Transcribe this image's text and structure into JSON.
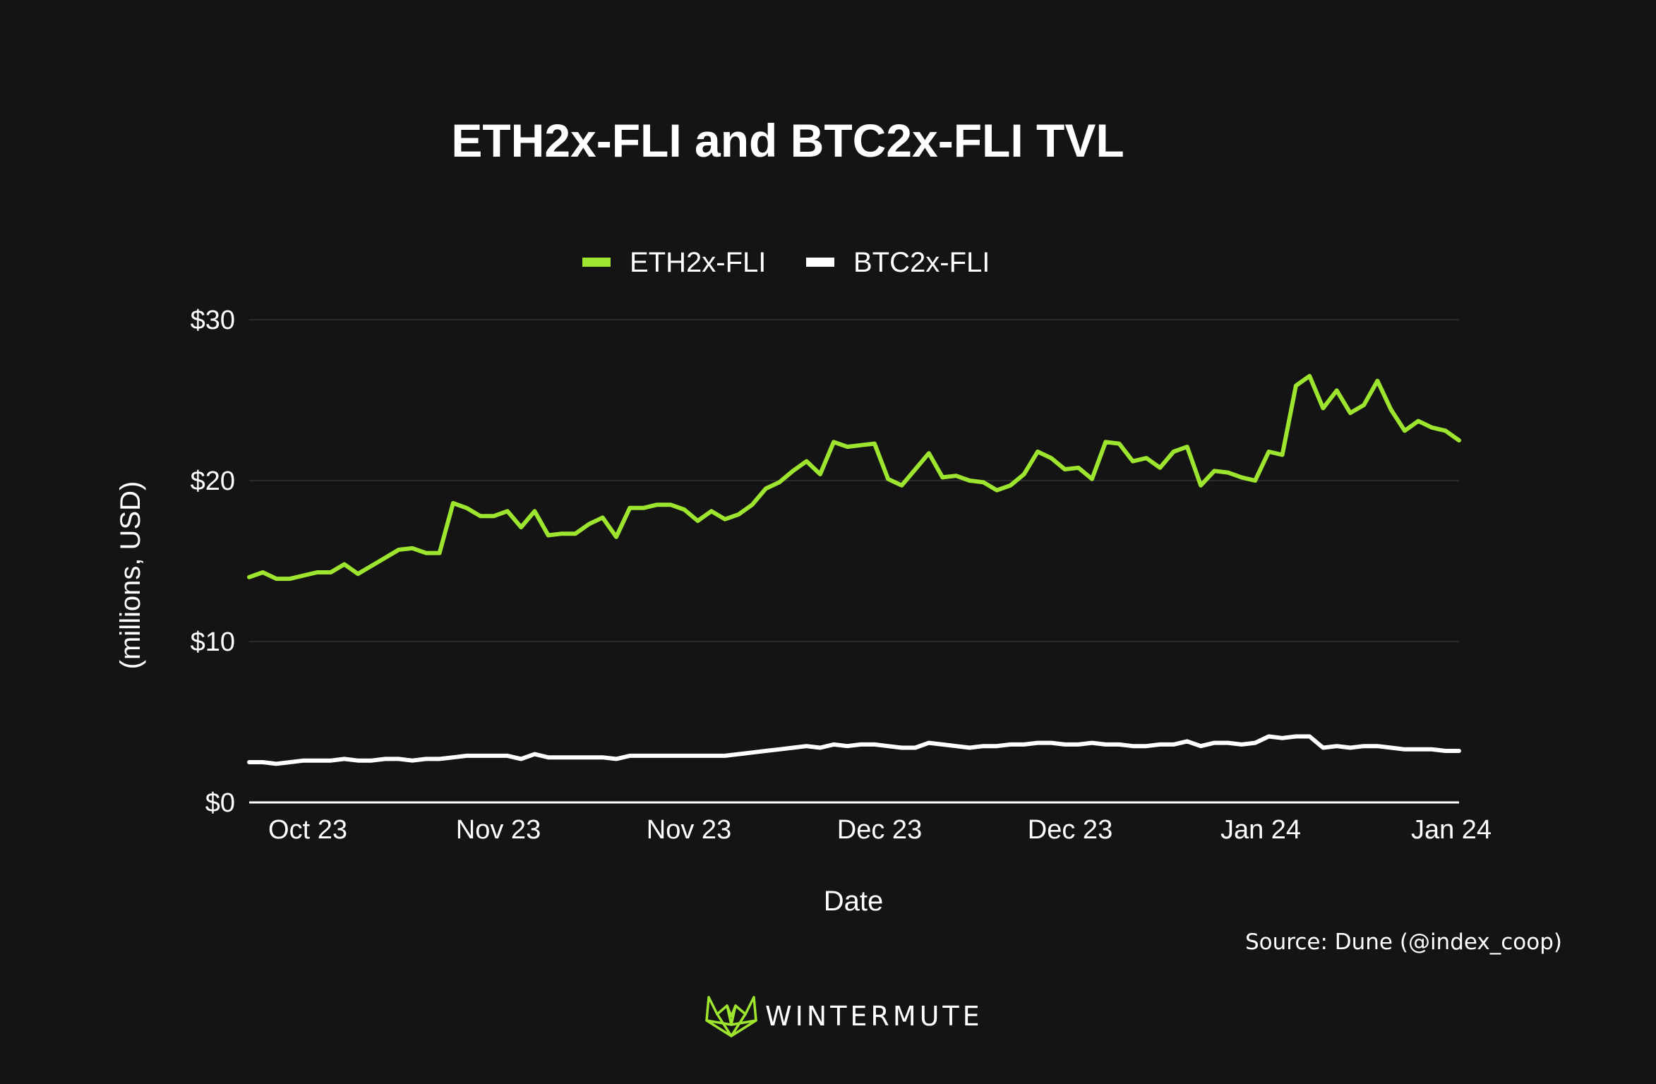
{
  "chart_data": {
    "type": "line",
    "title": "ETH2x-FLI and BTC2x-FLI TVL",
    "xlabel": "Date",
    "ylabel": "(millions, USD)",
    "ylim": [
      0,
      30
    ],
    "yticks": [
      0,
      10,
      20,
      30
    ],
    "ytick_labels": [
      "$0",
      "$10",
      "$20",
      "$30"
    ],
    "xtick_labels": [
      "Oct 23",
      "Nov 23",
      "Nov 23",
      "Dec 23",
      "Dec 23",
      "Jan 24",
      "Jan 24"
    ],
    "grid": true,
    "legend_position": "top-center",
    "series": [
      {
        "name": "ETH2x-FLI",
        "color": "#9de52e",
        "values": [
          14.0,
          14.3,
          13.9,
          13.9,
          14.1,
          14.3,
          14.3,
          14.8,
          14.2,
          14.7,
          15.2,
          15.7,
          15.8,
          15.5,
          15.5,
          18.6,
          18.3,
          17.8,
          17.8,
          18.1,
          17.1,
          18.1,
          16.6,
          16.7,
          16.7,
          17.3,
          17.7,
          16.5,
          18.3,
          18.3,
          18.5,
          18.5,
          18.2,
          17.5,
          18.1,
          17.6,
          17.9,
          18.5,
          19.5,
          19.9,
          20.6,
          21.2,
          20.4,
          22.4,
          22.1,
          22.2,
          22.3,
          20.1,
          19.7,
          20.7,
          21.7,
          20.2,
          20.3,
          20.0,
          19.9,
          19.4,
          19.7,
          20.4,
          21.8,
          21.4,
          20.7,
          20.8,
          20.1,
          22.4,
          22.3,
          21.2,
          21.4,
          20.8,
          21.8,
          22.1,
          19.7,
          20.6,
          20.5,
          20.2,
          20.0,
          21.8,
          21.6,
          25.9,
          26.5,
          24.5,
          25.6,
          24.2,
          24.7,
          26.2,
          24.4,
          23.1,
          23.7,
          23.3,
          23.1,
          22.5
        ]
      },
      {
        "name": "BTC2x-FLI",
        "color": "#ffffff",
        "values": [
          2.5,
          2.5,
          2.4,
          2.5,
          2.6,
          2.6,
          2.6,
          2.7,
          2.6,
          2.6,
          2.7,
          2.7,
          2.6,
          2.7,
          2.7,
          2.8,
          2.9,
          2.9,
          2.9,
          2.9,
          2.7,
          3.0,
          2.8,
          2.8,
          2.8,
          2.8,
          2.8,
          2.7,
          2.9,
          2.9,
          2.9,
          2.9,
          2.9,
          2.9,
          2.9,
          2.9,
          3.0,
          3.1,
          3.2,
          3.3,
          3.4,
          3.5,
          3.4,
          3.6,
          3.5,
          3.6,
          3.6,
          3.5,
          3.4,
          3.4,
          3.7,
          3.6,
          3.5,
          3.4,
          3.5,
          3.5,
          3.6,
          3.6,
          3.7,
          3.7,
          3.6,
          3.6,
          3.7,
          3.6,
          3.6,
          3.5,
          3.5,
          3.6,
          3.6,
          3.8,
          3.5,
          3.7,
          3.7,
          3.6,
          3.7,
          4.1,
          4.0,
          4.1,
          4.1,
          3.4,
          3.5,
          3.4,
          3.5,
          3.5,
          3.4,
          3.3,
          3.3,
          3.3,
          3.2,
          3.2
        ]
      }
    ]
  },
  "source": "Source: Dune (@index_coop)",
  "brand": {
    "name": "WINTERMUTE",
    "icon": "wintermute-fox-icon",
    "accent_color": "#9de52e"
  }
}
